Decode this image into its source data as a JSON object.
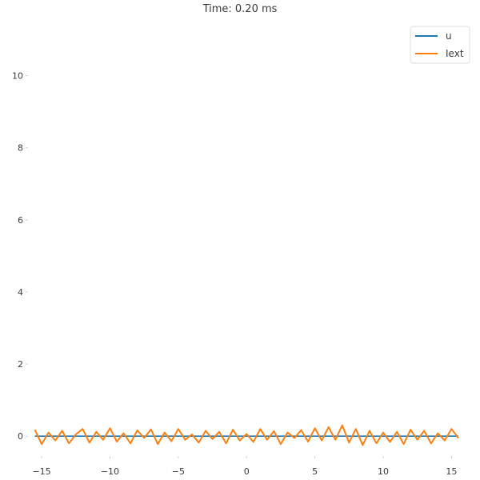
{
  "chart_data": {
    "type": "line",
    "title": "Time: 0.20 ms",
    "xlabel": "",
    "ylabel": "",
    "xlim": [
      -16,
      16.5
    ],
    "ylim": [
      -0.55,
      11.5
    ],
    "x_ticks": [
      -15,
      -10,
      -5,
      0,
      5,
      10,
      15
    ],
    "x_tick_labels": [
      "−15",
      "−10",
      "−5",
      "0",
      "5",
      "10",
      "15"
    ],
    "y_ticks": [
      0,
      2,
      4,
      6,
      8,
      10
    ],
    "y_tick_labels": [
      "0",
      "2",
      "4",
      "6",
      "8",
      "10"
    ],
    "grid": false,
    "legend_position": "top-right",
    "series": [
      {
        "name": "u",
        "color": "#1f77b4",
        "x": [
          -15.5,
          -12,
          -8,
          -4,
          0,
          4,
          8,
          12,
          15.5
        ],
        "values": [
          0.0,
          0.0,
          0.0,
          0.0,
          0.0,
          0.0,
          0.0,
          0.0,
          0.0
        ]
      },
      {
        "name": "Iext",
        "color": "#ff7f0e",
        "x": [
          -15.5,
          -15,
          -14.5,
          -14,
          -13.5,
          -13,
          -12.5,
          -12,
          -11.5,
          -11,
          -10.5,
          -10,
          -9.5,
          -9,
          -8.5,
          -8,
          -7.5,
          -7,
          -6.5,
          -6,
          -5.5,
          -5,
          -4.5,
          -4,
          -3.5,
          -3,
          -2.5,
          -2,
          -1.5,
          -1,
          -0.5,
          0,
          0.5,
          1,
          1.5,
          2,
          2.5,
          3,
          3.5,
          4,
          4.5,
          5,
          5.5,
          6,
          6.5,
          7,
          7.5,
          8,
          8.5,
          9,
          9.5,
          10,
          10.5,
          11,
          11.5,
          12,
          12.5,
          13,
          13.5,
          14,
          14.5,
          15,
          15.5
        ],
        "values": [
          0.18,
          -0.22,
          0.1,
          -0.12,
          0.15,
          -0.2,
          0.05,
          0.2,
          -0.18,
          0.12,
          -0.1,
          0.22,
          -0.15,
          0.08,
          -0.2,
          0.16,
          -0.05,
          0.19,
          -0.22,
          0.1,
          -0.14,
          0.2,
          -0.1,
          0.05,
          -0.18,
          0.15,
          -0.08,
          0.12,
          -0.2,
          0.18,
          -0.12,
          0.06,
          -0.16,
          0.2,
          -0.1,
          0.14,
          -0.22,
          0.1,
          -0.05,
          0.17,
          -0.15,
          0.22,
          -0.12,
          0.25,
          -0.1,
          0.3,
          -0.18,
          0.2,
          -0.25,
          0.15,
          -0.2,
          0.1,
          -0.16,
          0.12,
          -0.22,
          0.18,
          -0.1,
          0.15,
          -0.2,
          0.08,
          -0.12,
          0.2,
          -0.05
        ]
      }
    ]
  }
}
